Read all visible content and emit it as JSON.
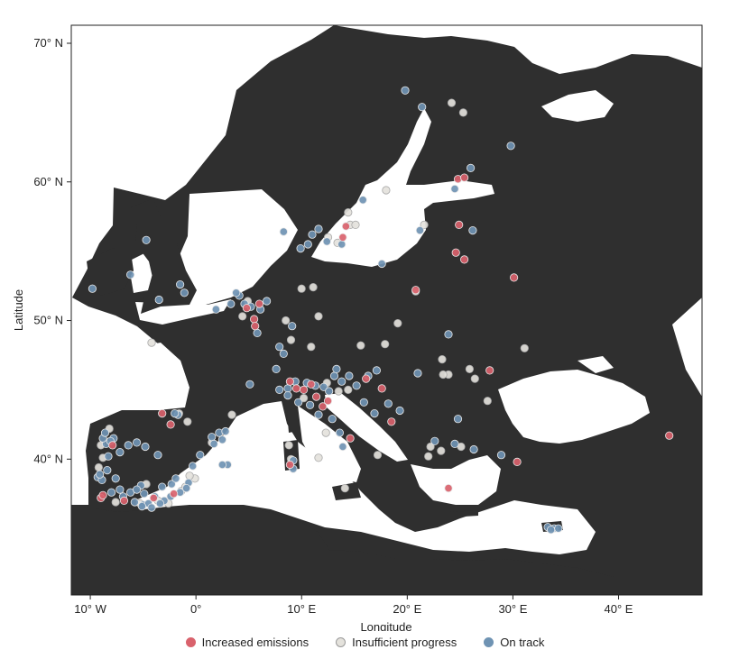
{
  "chart_data": {
    "type": "scatter",
    "projection": "lon-lat map of Europe",
    "xlabel": "Longitude",
    "ylabel": "Latitude",
    "x_ticks": [
      {
        "value": -10,
        "label": "10° W"
      },
      {
        "value": 0,
        "label": "0°"
      },
      {
        "value": 10,
        "label": "10° E"
      },
      {
        "value": 20,
        "label": "20° E"
      },
      {
        "value": 30,
        "label": "30° E"
      },
      {
        "value": 40,
        "label": "40° E"
      }
    ],
    "y_ticks": [
      {
        "value": 40,
        "label": "40° N"
      },
      {
        "value": 50,
        "label": "50° N"
      },
      {
        "value": 60,
        "label": "60° N"
      },
      {
        "value": 70,
        "label": "70° N"
      }
    ],
    "xlim": [
      -11.8,
      47.9
    ],
    "ylim": [
      30.2,
      71.3
    ],
    "land_color": "#2f2f2f",
    "sea_color": "#ffffff",
    "series": [
      {
        "name": "Increased emissions",
        "color": "#d9626c",
        "points": [
          [
            44.8,
            41.7
          ],
          [
            30.1,
            53.1
          ],
          [
            30.4,
            39.8
          ],
          [
            24.9,
            56.9
          ],
          [
            24.6,
            54.9
          ],
          [
            25.4,
            54.4
          ],
          [
            24.8,
            60.2
          ],
          [
            25.4,
            60.3
          ],
          [
            20.8,
            52.2
          ],
          [
            27.8,
            46.4
          ],
          [
            23.9,
            37.9
          ],
          [
            18.5,
            42.7
          ],
          [
            16.1,
            45.8
          ],
          [
            17.6,
            45.1
          ],
          [
            14.6,
            41.5
          ],
          [
            12.5,
            44.2
          ],
          [
            10.9,
            45.4
          ],
          [
            11.4,
            44.5
          ],
          [
            8.9,
            45.6
          ],
          [
            10.2,
            45.0
          ],
          [
            12.0,
            43.8
          ],
          [
            9.5,
            45.1
          ],
          [
            5.5,
            50.1
          ],
          [
            5.6,
            49.6
          ],
          [
            6.0,
            51.2
          ],
          [
            4.8,
            50.9
          ],
          [
            13.9,
            56.0
          ],
          [
            14.2,
            56.8
          ],
          [
            -3.2,
            43.3
          ],
          [
            -2.4,
            42.5
          ],
          [
            -9.0,
            37.2
          ],
          [
            -8.8,
            37.4
          ],
          [
            -6.8,
            37.0
          ],
          [
            -2.1,
            37.5
          ],
          [
            -4.0,
            37.2
          ],
          [
            8.9,
            39.6
          ],
          [
            -7.9,
            41.0
          ]
        ]
      },
      {
        "name": "Insufficient progress",
        "color": "#e4e2dc",
        "points": [
          [
            24.2,
            65.7
          ],
          [
            25.3,
            65.0
          ],
          [
            18.0,
            59.4
          ],
          [
            12.5,
            56.0
          ],
          [
            13.4,
            55.6
          ],
          [
            14.4,
            57.8
          ],
          [
            14.6,
            56.9
          ],
          [
            15.1,
            56.9
          ],
          [
            21.6,
            56.9
          ],
          [
            20.8,
            52.1
          ],
          [
            19.1,
            49.8
          ],
          [
            23.3,
            47.2
          ],
          [
            23.9,
            46.1
          ],
          [
            23.4,
            46.1
          ],
          [
            25.9,
            46.5
          ],
          [
            26.4,
            45.8
          ],
          [
            27.6,
            44.2
          ],
          [
            31.1,
            48.0
          ],
          [
            17.9,
            48.3
          ],
          [
            15.6,
            48.2
          ],
          [
            14.4,
            45.0
          ],
          [
            13.5,
            44.9
          ],
          [
            12.4,
            45.5
          ],
          [
            10.2,
            44.4
          ],
          [
            12.3,
            41.9
          ],
          [
            11.6,
            40.1
          ],
          [
            14.1,
            37.9
          ],
          [
            17.2,
            40.3
          ],
          [
            22.2,
            40.9
          ],
          [
            23.2,
            40.6
          ],
          [
            22.0,
            40.2
          ],
          [
            25.1,
            40.9
          ],
          [
            8.8,
            41.0
          ],
          [
            9.0,
            40.0
          ],
          [
            8.5,
            50.0
          ],
          [
            10.0,
            52.3
          ],
          [
            11.1,
            52.4
          ],
          [
            11.6,
            50.3
          ],
          [
            9.0,
            48.6
          ],
          [
            10.9,
            48.1
          ],
          [
            4.9,
            51.4
          ],
          [
            4.4,
            50.3
          ],
          [
            -4.2,
            48.4
          ],
          [
            -1.6,
            43.3
          ],
          [
            -0.8,
            42.7
          ],
          [
            1.5,
            41.2
          ],
          [
            3.4,
            43.2
          ],
          [
            -0.1,
            38.6
          ],
          [
            -1.0,
            38.0
          ],
          [
            -0.6,
            38.8
          ],
          [
            -9.2,
            39.4
          ],
          [
            -8.8,
            40.1
          ],
          [
            -9.0,
            41.0
          ],
          [
            -7.6,
            36.9
          ],
          [
            -5.3,
            36.8
          ],
          [
            -3.6,
            37.0
          ],
          [
            -2.6,
            36.8
          ],
          [
            -4.7,
            38.2
          ],
          [
            -1.4,
            37.7
          ],
          [
            -8.2,
            42.2
          ]
        ]
      },
      {
        "name": "On track",
        "color": "#6f93b3",
        "points": [
          [
            19.8,
            66.6
          ],
          [
            21.4,
            65.4
          ],
          [
            29.8,
            62.6
          ],
          [
            26.0,
            61.0
          ],
          [
            24.5,
            59.5
          ],
          [
            15.8,
            58.7
          ],
          [
            26.2,
            56.5
          ],
          [
            21.2,
            56.5
          ],
          [
            23.9,
            49.0
          ],
          [
            21.0,
            46.2
          ],
          [
            24.8,
            42.9
          ],
          [
            22.6,
            41.3
          ],
          [
            24.5,
            41.1
          ],
          [
            26.3,
            40.7
          ],
          [
            28.9,
            40.3
          ],
          [
            33.3,
            35.1
          ],
          [
            33.9,
            35.0
          ],
          [
            34.3,
            35.0
          ],
          [
            33.6,
            34.9
          ],
          [
            17.6,
            54.1
          ],
          [
            12.4,
            55.7
          ],
          [
            11.0,
            56.2
          ],
          [
            8.3,
            56.4
          ],
          [
            10.6,
            55.5
          ],
          [
            9.9,
            55.2
          ],
          [
            11.6,
            56.6
          ],
          [
            13.8,
            55.5
          ],
          [
            9.1,
            49.6
          ],
          [
            8.3,
            47.6
          ],
          [
            7.9,
            48.1
          ],
          [
            5.1,
            45.4
          ],
          [
            7.6,
            46.5
          ],
          [
            7.9,
            45.0
          ],
          [
            8.7,
            45.1
          ],
          [
            9.4,
            45.6
          ],
          [
            10.5,
            45.5
          ],
          [
            11.3,
            45.3
          ],
          [
            12.1,
            45.2
          ],
          [
            12.6,
            44.9
          ],
          [
            13.1,
            46.0
          ],
          [
            13.8,
            45.6
          ],
          [
            14.5,
            46.0
          ],
          [
            15.2,
            45.3
          ],
          [
            16.3,
            46.0
          ],
          [
            17.1,
            46.4
          ],
          [
            15.9,
            44.1
          ],
          [
            16.9,
            43.3
          ],
          [
            18.2,
            44.0
          ],
          [
            19.3,
            43.5
          ],
          [
            13.3,
            46.5
          ],
          [
            9.7,
            44.1
          ],
          [
            10.8,
            43.9
          ],
          [
            8.7,
            44.6
          ],
          [
            11.6,
            43.2
          ],
          [
            12.9,
            42.9
          ],
          [
            13.6,
            41.9
          ],
          [
            13.9,
            40.9
          ],
          [
            9.2,
            39.3
          ],
          [
            9.2,
            39.9
          ],
          [
            6.7,
            51.4
          ],
          [
            6.1,
            50.8
          ],
          [
            5.8,
            49.1
          ],
          [
            4.1,
            51.8
          ],
          [
            3.8,
            52.0
          ],
          [
            3.3,
            51.2
          ],
          [
            4.6,
            51.2
          ],
          [
            5.2,
            51.0
          ],
          [
            1.9,
            50.8
          ],
          [
            -1.5,
            52.6
          ],
          [
            -1.1,
            52.0
          ],
          [
            -3.5,
            51.5
          ],
          [
            -4.7,
            55.8
          ],
          [
            -6.2,
            53.3
          ],
          [
            -9.8,
            52.3
          ],
          [
            1.5,
            41.6
          ],
          [
            2.2,
            41.9
          ],
          [
            2.8,
            42.0
          ],
          [
            1.7,
            41.1
          ],
          [
            2.5,
            41.4
          ],
          [
            0.4,
            40.3
          ],
          [
            3.0,
            39.6
          ],
          [
            2.5,
            39.6
          ],
          [
            -0.3,
            39.5
          ],
          [
            -0.7,
            38.3
          ],
          [
            -1.7,
            43.2
          ],
          [
            -2.0,
            43.3
          ],
          [
            -3.6,
            40.3
          ],
          [
            -5.6,
            41.2
          ],
          [
            -4.8,
            40.9
          ],
          [
            -6.4,
            41.0
          ],
          [
            -7.8,
            41.5
          ],
          [
            -8.5,
            41.1
          ],
          [
            -8.8,
            41.5
          ],
          [
            -8.6,
            41.9
          ],
          [
            -8.1,
            41.3
          ],
          [
            -7.2,
            40.5
          ],
          [
            -8.3,
            40.2
          ],
          [
            -9.3,
            38.7
          ],
          [
            -8.9,
            38.5
          ],
          [
            -8.4,
            39.2
          ],
          [
            -7.6,
            38.6
          ],
          [
            -9.1,
            38.9
          ],
          [
            -6.9,
            37.3
          ],
          [
            -5.8,
            36.9
          ],
          [
            -5.0,
            36.7
          ],
          [
            -4.5,
            36.8
          ],
          [
            -3.9,
            37.3
          ],
          [
            -3.0,
            37.0
          ],
          [
            -2.4,
            37.3
          ],
          [
            -1.5,
            37.6
          ],
          [
            -0.9,
            37.9
          ],
          [
            -5.2,
            38.1
          ],
          [
            -4.9,
            37.5
          ],
          [
            -3.2,
            38.0
          ],
          [
            -2.3,
            38.2
          ],
          [
            -1.9,
            38.6
          ],
          [
            -6.2,
            37.6
          ],
          [
            -5.6,
            37.8
          ],
          [
            -7.2,
            37.8
          ],
          [
            -8.0,
            37.6
          ],
          [
            -5.1,
            36.6
          ],
          [
            -4.2,
            36.5
          ],
          [
            -3.4,
            36.8
          ]
        ]
      }
    ]
  },
  "legend": {
    "items": [
      {
        "label": "Increased emissions",
        "color": "#d9626c"
      },
      {
        "label": "Insufficient progress",
        "color": "#e4e2dc"
      },
      {
        "label": "On track",
        "color": "#6f93b3"
      }
    ]
  }
}
